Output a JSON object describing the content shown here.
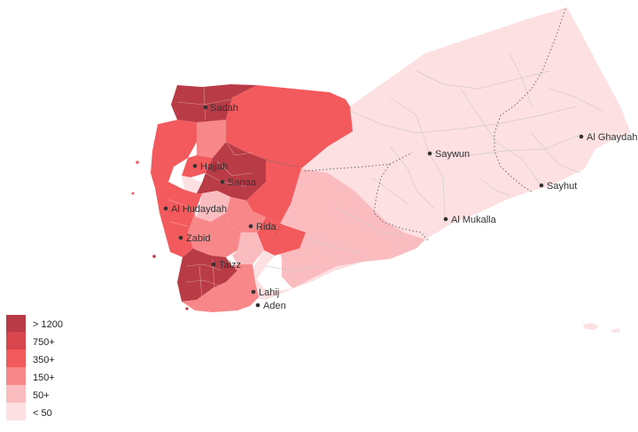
{
  "legend": {
    "items": [
      {
        "label": "> 1200",
        "color": "#b83b45"
      },
      {
        "label": "750+",
        "color": "#d9454d"
      },
      {
        "label": "350+",
        "color": "#f35a5d"
      },
      {
        "label": "150+",
        "color": "#f8878a"
      },
      {
        "label": "50+",
        "color": "#fbbcbf"
      },
      {
        "label": "< 50",
        "color": "#fde0e2"
      }
    ]
  },
  "cities": [
    {
      "name": "Sadah"
    },
    {
      "name": "Hajjah"
    },
    {
      "name": "Sanaa"
    },
    {
      "name": "Al Hudaydah"
    },
    {
      "name": "Rida"
    },
    {
      "name": "Zabid"
    },
    {
      "name": "Taizz"
    },
    {
      "name": "Lahij"
    },
    {
      "name": "Aden"
    },
    {
      "name": "Saywun"
    },
    {
      "name": "Al Mukalla"
    },
    {
      "name": "Al Ghaydah"
    },
    {
      "name": "Sayhut"
    }
  ]
}
